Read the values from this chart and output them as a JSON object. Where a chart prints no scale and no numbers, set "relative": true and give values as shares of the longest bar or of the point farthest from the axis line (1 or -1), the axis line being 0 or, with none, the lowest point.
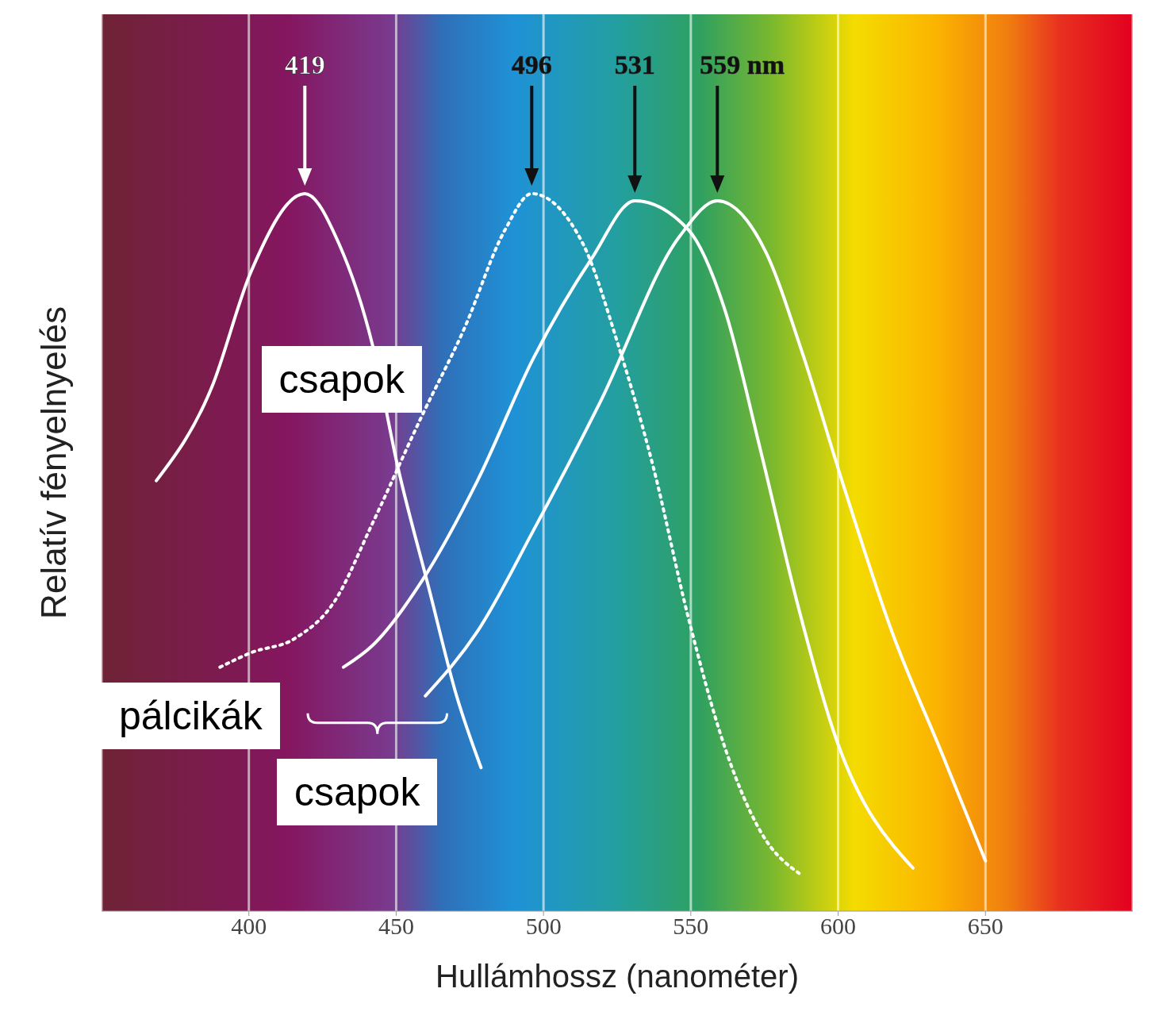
{
  "chart_data": {
    "type": "line",
    "relative": true,
    "xlabel": "Hullámhossz (nanométer)",
    "ylabel": "Relatív fényelnyelés",
    "xlim": [
      350,
      700
    ],
    "xticks": [
      400,
      450,
      500,
      550,
      600,
      650
    ],
    "grid": "x",
    "marker": "none",
    "series": [
      {
        "color": "#ffffff",
        "line_style": "solid",
        "x": [
          368.6,
          387.4,
          400.6,
          419,
          430.6,
          441.9,
          450.5,
          461.1,
          470.5,
          478.8
        ],
        "values": [
          0.6,
          0.73,
          0.89,
          1.0,
          0.93,
          0.79,
          0.62,
          0.45,
          0.3,
          0.2
        ]
      },
      {
        "color": "#ffffff",
        "line_style": "dotted",
        "x": [
          390.2,
          400.6,
          415.6,
          428.8,
          441.9,
          458.7,
          472.9,
          487.0,
          496,
          513.4,
          525.3,
          537.2,
          549.1,
          561.4,
          573.8,
          587.7
        ],
        "values": [
          0.34,
          0.36,
          0.38,
          0.43,
          0.54,
          0.69,
          0.81,
          0.95,
          1.0,
          0.93,
          0.79,
          0.62,
          0.41,
          0.23,
          0.11,
          0.05
        ]
      },
      {
        "color": "#ffffff",
        "line_style": "solid",
        "x": [
          432.1,
          441.9,
          458.7,
          477.6,
          496.5,
          516.4,
          531,
          549.1,
          561.4,
          573.8,
          586.1,
          598.5,
          625.4
        ],
        "values": [
          0.34,
          0.37,
          0.46,
          0.6,
          0.77,
          0.91,
          0.99,
          0.95,
          0.84,
          0.64,
          0.43,
          0.25,
          0.06
        ]
      },
      {
        "color": "#ffffff",
        "line_style": "solid",
        "x": [
          459.9,
          477.6,
          496.5,
          519.3,
          546.1,
          559,
          575.3,
          587.7,
          601.3,
          618.2,
          635.2,
          650
        ],
        "values": [
          0.3,
          0.39,
          0.53,
          0.71,
          0.94,
          0.99,
          0.92,
          0.78,
          0.6,
          0.39,
          0.22,
          0.07
        ]
      }
    ],
    "annotations": [
      "419",
      "496",
      "531",
      "559 nm",
      "csapok",
      "pálcikák",
      "csapok"
    ]
  }
}
